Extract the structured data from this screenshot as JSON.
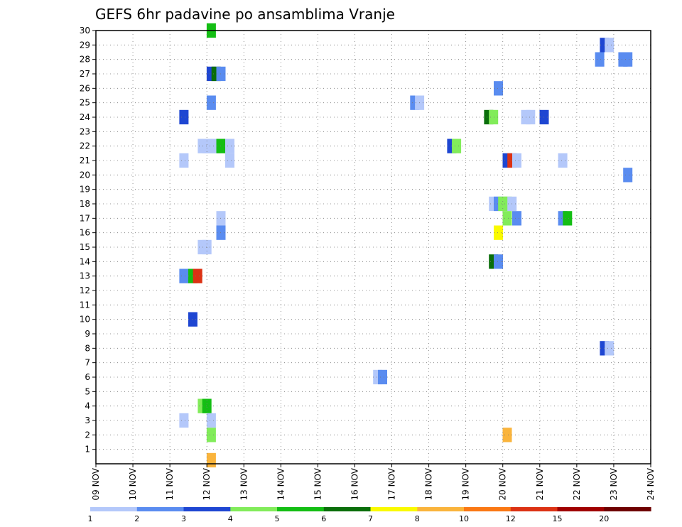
{
  "chart_data": {
    "type": "heatmap",
    "title": "GEFS 6hr padavine po ansamblima Vranje",
    "xlabel": "",
    "ylabel": "",
    "x_tick_labels": [
      "09 NOV",
      "10 NOV",
      "11 NOV",
      "12 NOV",
      "13 NOV",
      "14 NOV",
      "15 NOV",
      "16 NOV",
      "17 NOV",
      "18 NOV",
      "19 NOV",
      "20 NOV",
      "21 NOV",
      "22 NOV",
      "23 NOV",
      "24 NOV"
    ],
    "y_tick_labels": [
      "1",
      "2",
      "3",
      "4",
      "5",
      "6",
      "7",
      "8",
      "9",
      "10",
      "11",
      "12",
      "13",
      "14",
      "15",
      "16",
      "17",
      "18",
      "19",
      "20",
      "21",
      "22",
      "23",
      "24",
      "25",
      "26",
      "27",
      "28",
      "29",
      "30"
    ],
    "xlim": [
      0,
      15
    ],
    "ylim": [
      0,
      30
    ],
    "grid": true,
    "colorbar": {
      "labels": [
        "1",
        "2",
        "3",
        "4",
        "5",
        "6",
        "7",
        "8",
        "10",
        "12",
        "15",
        "20"
      ],
      "colors": [
        "#b4c8fa",
        "#5a8cf0",
        "#1e46d2",
        "#82ec5a",
        "#14be14",
        "#0a6e0a",
        "#fafa00",
        "#fab43c",
        "#fa7814",
        "#dc3214",
        "#a00000",
        "#6e0000"
      ]
    },
    "cells": [
      {
        "x": 3.12,
        "y": 30,
        "level": 5
      },
      {
        "x": 13.75,
        "y": 29,
        "level": 3
      },
      {
        "x": 13.88,
        "y": 29,
        "level": 1
      },
      {
        "x": 13.62,
        "y": 28,
        "level": 2
      },
      {
        "x": 14.25,
        "y": 28,
        "level": 2
      },
      {
        "x": 14.38,
        "y": 28,
        "level": 2
      },
      {
        "x": 3.12,
        "y": 27,
        "level": 3
      },
      {
        "x": 3.25,
        "y": 27,
        "level": 6
      },
      {
        "x": 3.38,
        "y": 27,
        "level": 2
      },
      {
        "x": 10.88,
        "y": 26,
        "level": 2
      },
      {
        "x": 3.12,
        "y": 25,
        "level": 2
      },
      {
        "x": 8.62,
        "y": 25,
        "level": 2
      },
      {
        "x": 8.75,
        "y": 25,
        "level": 1
      },
      {
        "x": 2.38,
        "y": 24,
        "level": 3
      },
      {
        "x": 10.62,
        "y": 24,
        "level": 6
      },
      {
        "x": 10.75,
        "y": 24,
        "level": 4
      },
      {
        "x": 11.62,
        "y": 24,
        "level": 1
      },
      {
        "x": 11.75,
        "y": 24,
        "level": 1
      },
      {
        "x": 12.12,
        "y": 24,
        "level": 3
      },
      {
        "x": 2.88,
        "y": 22,
        "level": 1
      },
      {
        "x": 3.0,
        "y": 22,
        "level": 1
      },
      {
        "x": 3.12,
        "y": 22,
        "level": 1
      },
      {
        "x": 3.25,
        "y": 22,
        "level": 1
      },
      {
        "x": 3.38,
        "y": 22,
        "level": 5
      },
      {
        "x": 3.62,
        "y": 22,
        "level": 1
      },
      {
        "x": 9.62,
        "y": 22,
        "level": 3
      },
      {
        "x": 9.75,
        "y": 22,
        "level": 4
      },
      {
        "x": 2.38,
        "y": 21,
        "level": 1
      },
      {
        "x": 3.62,
        "y": 21,
        "level": 1
      },
      {
        "x": 11.12,
        "y": 21,
        "level": 3
      },
      {
        "x": 11.25,
        "y": 21,
        "level": 10
      },
      {
        "x": 11.38,
        "y": 21,
        "level": 1
      },
      {
        "x": 12.62,
        "y": 21,
        "level": 1
      },
      {
        "x": 14.38,
        "y": 20,
        "level": 2
      },
      {
        "x": 10.75,
        "y": 18,
        "level": 1
      },
      {
        "x": 10.88,
        "y": 18,
        "level": 2
      },
      {
        "x": 11.0,
        "y": 18,
        "level": 4
      },
      {
        "x": 11.12,
        "y": 18,
        "level": 4
      },
      {
        "x": 11.25,
        "y": 18,
        "level": 1
      },
      {
        "x": 3.38,
        "y": 17,
        "level": 1
      },
      {
        "x": 11.12,
        "y": 17,
        "level": 4
      },
      {
        "x": 11.38,
        "y": 17,
        "level": 2
      },
      {
        "x": 12.62,
        "y": 17,
        "level": 2
      },
      {
        "x": 12.75,
        "y": 17,
        "level": 5
      },
      {
        "x": 10.88,
        "y": 16,
        "level": 7
      },
      {
        "x": 3.38,
        "y": 16,
        "level": 2
      },
      {
        "x": 2.88,
        "y": 15,
        "level": 1
      },
      {
        "x": 3.0,
        "y": 15,
        "level": 1
      },
      {
        "x": 10.75,
        "y": 14,
        "level": 6
      },
      {
        "x": 10.88,
        "y": 14,
        "level": 2
      },
      {
        "x": 2.38,
        "y": 13,
        "level": 2
      },
      {
        "x": 2.62,
        "y": 13,
        "level": 5
      },
      {
        "x": 2.75,
        "y": 13,
        "level": 10
      },
      {
        "x": 2.62,
        "y": 10,
        "level": 3
      },
      {
        "x": 13.75,
        "y": 8,
        "level": 3
      },
      {
        "x": 13.88,
        "y": 8,
        "level": 1
      },
      {
        "x": 7.62,
        "y": 6,
        "level": 1
      },
      {
        "x": 7.75,
        "y": 6,
        "level": 2
      },
      {
        "x": 2.88,
        "y": 4,
        "level": 4
      },
      {
        "x": 3.0,
        "y": 4,
        "level": 5
      },
      {
        "x": 2.38,
        "y": 3,
        "level": 1
      },
      {
        "x": 3.12,
        "y": 3,
        "level": 1
      },
      {
        "x": 3.12,
        "y": 2,
        "level": 4
      },
      {
        "x": 11.12,
        "y": 2,
        "level": 8
      },
      {
        "x": 3.12,
        "y": 0.25,
        "level": 8
      }
    ]
  }
}
